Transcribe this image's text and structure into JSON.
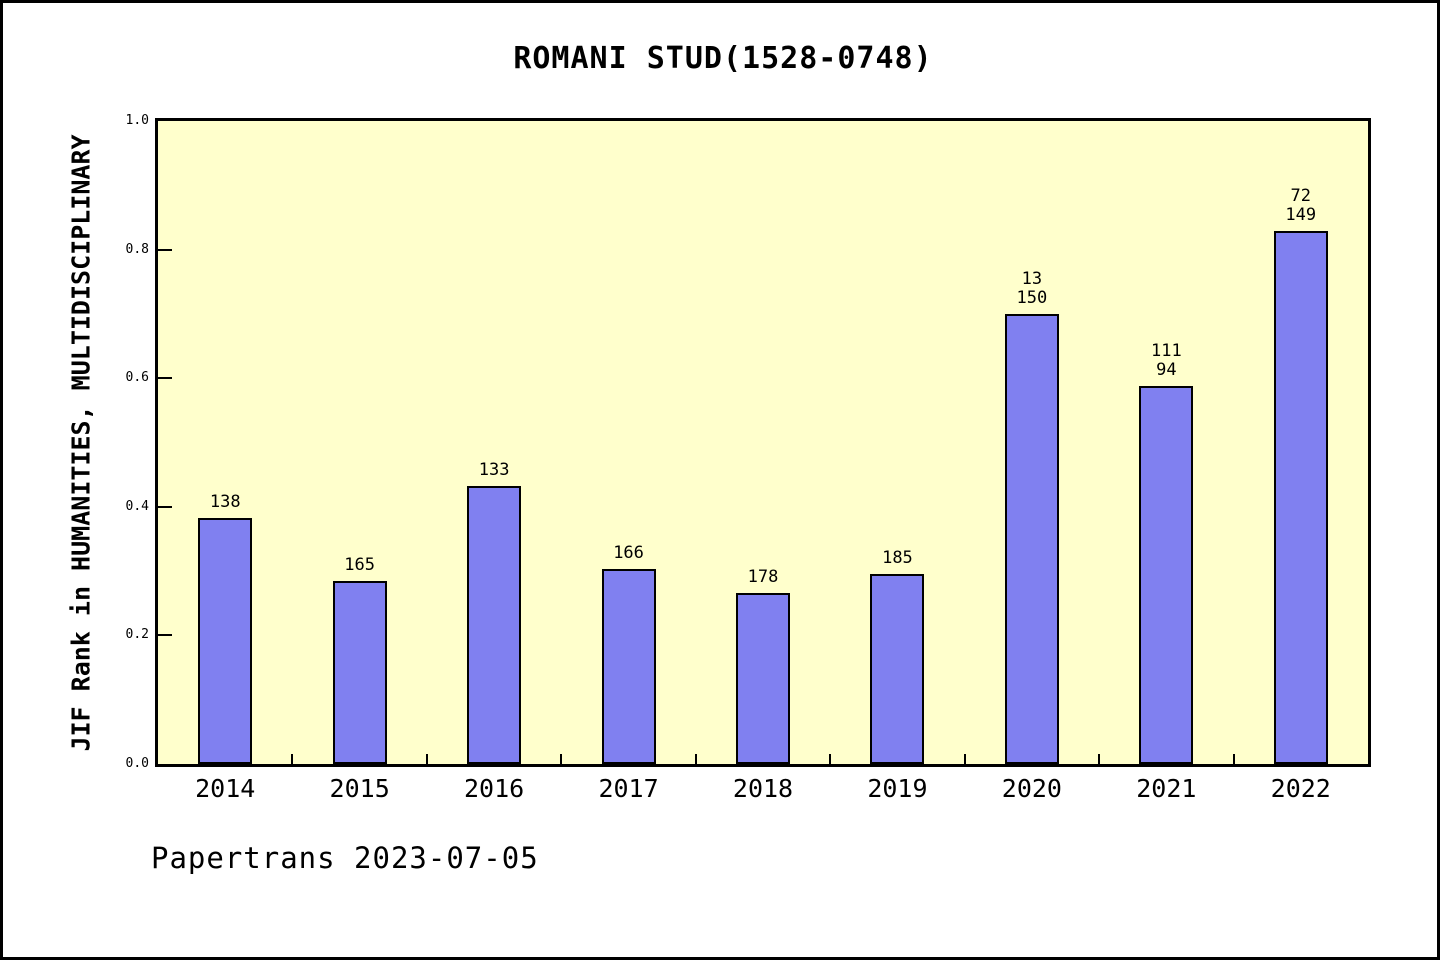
{
  "page": {
    "background_color": "#ffffff",
    "frame_border_color": "#000000"
  },
  "chart_data": {
    "type": "bar",
    "title": "ROMANI STUD(1528-0748)",
    "xlabel": "",
    "ylabel": "JIF Rank in HUMANITIES, MULTIDISCIPLINARY",
    "categories": [
      "2014",
      "2015",
      "2016",
      "2017",
      "2018",
      "2019",
      "2020",
      "2021",
      "2022"
    ],
    "values": [
      0.383,
      0.285,
      0.432,
      0.304,
      0.266,
      0.295,
      0.7,
      0.588,
      0.829
    ],
    "bar_labels": [
      [
        "138"
      ],
      [
        "165"
      ],
      [
        "133"
      ],
      [
        "166"
      ],
      [
        "178"
      ],
      [
        "185"
      ],
      [
        "13",
        "150"
      ],
      [
        "111",
        "94"
      ],
      [
        "72",
        "149"
      ]
    ],
    "ylim": [
      0.0,
      1.0
    ],
    "yticks": [
      "0.0",
      "0.2",
      "0.4",
      "0.6",
      "0.8",
      "1.0"
    ],
    "grid": false,
    "legend": null,
    "plot_bg_color": "#ffffcc",
    "bar_color": "#8080f0",
    "bar_edge_color": "#000000",
    "axis_color": "#000000"
  },
  "footer": {
    "text": "Papertrans 2023-07-05"
  }
}
